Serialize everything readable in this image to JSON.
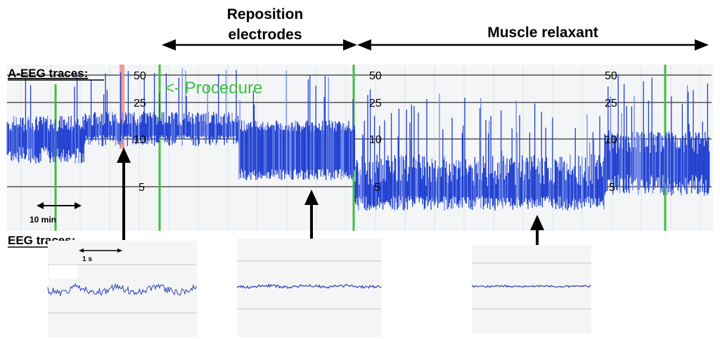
{
  "annotations": {
    "reposition": [
      "Reposition",
      "electrodes"
    ],
    "muscle": "Muscle relaxant",
    "procedure": "<- Procedure",
    "aeeg_label": "A-EEG traces:",
    "eeg_label": "EEG traces:",
    "time_bar": "10 min",
    "eeg_time_bar": "1 s"
  },
  "chart_data": {
    "type": "line",
    "title": "",
    "xlabel": "",
    "ylabel": "",
    "y_scale": "semi-log",
    "y_ticks": [
      5,
      10,
      25,
      50
    ],
    "ylim": [
      2,
      80
    ],
    "grid": true,
    "series": [
      {
        "segment": "before reposition",
        "lower_margin": [
          7,
          9
        ],
        "upper_margin": [
          14,
          20
        ]
      },
      {
        "segment": "after reposition",
        "lower_margin": [
          5.5,
          6.5
        ],
        "upper_margin": [
          12,
          16
        ]
      },
      {
        "segment": "muscle relaxant",
        "lower_margin": [
          2.8,
          4
        ],
        "upper_margin": [
          5,
          8
        ]
      }
    ],
    "eeg_panels": [
      {
        "index": 1,
        "description_visible": false
      },
      {
        "index": 2,
        "description_visible": false
      },
      {
        "index": 3,
        "description_visible": false
      }
    ]
  },
  "colors": {
    "trace": "#1f3fd0",
    "trace_light": "#6f86e6",
    "grid": "#000000",
    "procedure_green": "#3fbf3f",
    "marker_red": "#f08a8a",
    "panel_bg": "#f4f4f4"
  }
}
